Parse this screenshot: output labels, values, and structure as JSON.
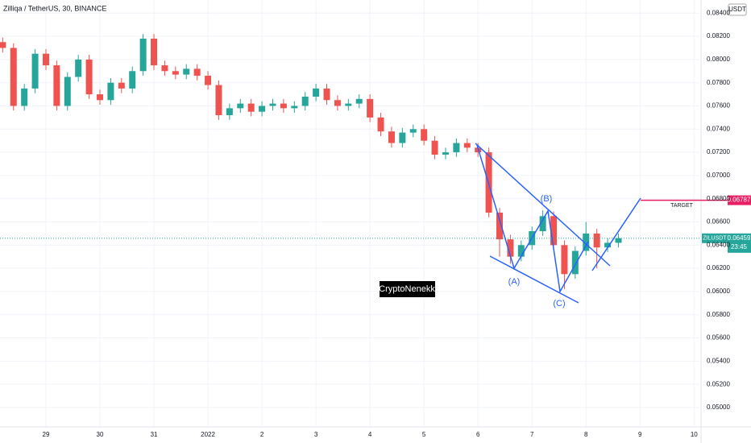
{
  "chart_data": {
    "type": "candlestick",
    "title": "Zilliqa / TetherUS, 30, BINANCE",
    "currency": "USDT",
    "symbol": "ZILUSDT",
    "countdown": "23:45",
    "watermark": "CryptoNenekk",
    "annotations": [
      "(A)",
      "(B)",
      "(C)",
      "TARGET"
    ],
    "last_price": 0.06459,
    "target_price": 0.06787,
    "up_color": "#26a69a",
    "down_color": "#ef5350",
    "target_color": "#e91e63",
    "x": [
      -0.8,
      -0.6,
      -0.4,
      -0.2,
      0,
      0.2,
      0.4,
      0.6,
      0.8,
      1,
      1.2,
      1.4,
      1.6,
      1.8,
      2,
      2.2,
      2.4,
      2.6,
      2.8,
      3,
      3.2,
      3.4,
      3.6,
      3.8,
      4,
      4.2,
      4.4,
      4.6,
      4.8,
      5,
      5.2,
      5.4,
      5.6,
      5.8,
      6,
      6.2,
      6.4,
      6.6,
      6.8,
      7,
      7.2,
      7.4,
      7.6,
      7.8,
      8,
      8.2,
      8.4,
      8.6,
      8.8,
      9,
      9.2,
      9.4,
      9.6,
      9.8,
      10,
      10.2,
      10.4,
      10.6
    ],
    "open": [
      0.0815,
      0.081,
      0.076,
      0.0775,
      0.0805,
      0.0795,
      0.076,
      0.0785,
      0.08,
      0.077,
      0.0765,
      0.078,
      0.0775,
      0.079,
      0.0818,
      0.0795,
      0.079,
      0.0787,
      0.0792,
      0.0786,
      0.0778,
      0.0752,
      0.0758,
      0.0762,
      0.0755,
      0.076,
      0.0762,
      0.0758,
      0.076,
      0.0768,
      0.0775,
      0.0765,
      0.076,
      0.0762,
      0.0766,
      0.075,
      0.0738,
      0.0728,
      0.0737,
      0.074,
      0.073,
      0.0718,
      0.072,
      0.0728,
      0.0724,
      0.072,
      0.0668,
      0.0645,
      0.063,
      0.064,
      0.0652,
      0.0665,
      0.064,
      0.0615,
      0.0635,
      0.065,
      0.0638,
      0.0642
    ],
    "high": [
      0.0819,
      0.0814,
      0.0779,
      0.0809,
      0.0809,
      0.0799,
      0.0789,
      0.0804,
      0.0804,
      0.0774,
      0.0784,
      0.0784,
      0.0794,
      0.0822,
      0.0822,
      0.0799,
      0.0794,
      0.0796,
      0.0796,
      0.079,
      0.0782,
      0.0762,
      0.0766,
      0.0766,
      0.0764,
      0.0766,
      0.0766,
      0.0764,
      0.0772,
      0.0779,
      0.0779,
      0.0769,
      0.0766,
      0.077,
      0.077,
      0.0754,
      0.0742,
      0.0741,
      0.0744,
      0.0744,
      0.0734,
      0.0724,
      0.0732,
      0.0732,
      0.0728,
      0.0724,
      0.0672,
      0.0649,
      0.0644,
      0.0656,
      0.067,
      0.0669,
      0.0644,
      0.0639,
      0.066,
      0.0654,
      0.0646,
      0.065
    ],
    "low": [
      0.0806,
      0.0756,
      0.0756,
      0.0771,
      0.0791,
      0.0756,
      0.0756,
      0.0781,
      0.0766,
      0.0761,
      0.0761,
      0.0771,
      0.0771,
      0.0786,
      0.0791,
      0.0786,
      0.0783,
      0.0783,
      0.0782,
      0.0774,
      0.0748,
      0.0748,
      0.0754,
      0.0751,
      0.0751,
      0.0756,
      0.0754,
      0.0754,
      0.0756,
      0.0764,
      0.0761,
      0.0756,
      0.0756,
      0.0758,
      0.0746,
      0.0734,
      0.0724,
      0.0724,
      0.0733,
      0.0726,
      0.0714,
      0.0714,
      0.0716,
      0.072,
      0.0716,
      0.0664,
      0.063,
      0.0624,
      0.0626,
      0.0636,
      0.0648,
      0.0636,
      0.0602,
      0.0611,
      0.0631,
      0.062,
      0.0634,
      0.0638
    ],
    "close": [
      0.081,
      0.076,
      0.0775,
      0.0805,
      0.0795,
      0.076,
      0.0785,
      0.08,
      0.077,
      0.0765,
      0.078,
      0.0775,
      0.079,
      0.0818,
      0.0795,
      0.079,
      0.0787,
      0.0792,
      0.0786,
      0.0778,
      0.0752,
      0.0758,
      0.0762,
      0.0755,
      0.076,
      0.0762,
      0.0758,
      0.076,
      0.0768,
      0.0775,
      0.0765,
      0.076,
      0.0762,
      0.0766,
      0.075,
      0.0738,
      0.0728,
      0.0737,
      0.074,
      0.073,
      0.0718,
      0.072,
      0.0728,
      0.0724,
      0.072,
      0.0668,
      0.0645,
      0.063,
      0.064,
      0.0652,
      0.0665,
      0.064,
      0.0615,
      0.0635,
      0.065,
      0.0638,
      0.0642,
      0.0646
    ],
    "xlim": [
      -0.85,
      12.1
    ],
    "xticks": [
      {
        "value": 0,
        "label": "29"
      },
      {
        "value": 1,
        "label": "30"
      },
      {
        "value": 2,
        "label": "31"
      },
      {
        "value": 3,
        "label": "2022"
      },
      {
        "value": 4,
        "label": "2"
      },
      {
        "value": 5,
        "label": "3"
      },
      {
        "value": 6,
        "label": "4"
      },
      {
        "value": 7,
        "label": "5"
      },
      {
        "value": 8,
        "label": "6"
      },
      {
        "value": 9,
        "label": "7"
      },
      {
        "value": 10,
        "label": "8"
      },
      {
        "value": 11,
        "label": "9"
      },
      {
        "value": 12,
        "label": "10"
      }
    ],
    "ylim": [
      0.04833,
      0.08513
    ],
    "yticks": [
      {
        "value": 0.05,
        "label": "0.05000"
      },
      {
        "value": 0.052,
        "label": "0.05200"
      },
      {
        "value": 0.054,
        "label": "0.05400"
      },
      {
        "value": 0.056,
        "label": "0.05600"
      },
      {
        "value": 0.058,
        "label": "0.05800"
      },
      {
        "value": 0.06,
        "label": "0.06000"
      },
      {
        "value": 0.062,
        "label": "0.06200"
      },
      {
        "value": 0.064,
        "label": "0.06400"
      },
      {
        "value": 0.066,
        "label": "0.06600"
      },
      {
        "value": 0.068,
        "label": "0.06800"
      },
      {
        "value": 0.07,
        "label": "0.07000"
      },
      {
        "value": 0.072,
        "label": "0.07200"
      },
      {
        "value": 0.074,
        "label": "0.07400"
      },
      {
        "value": 0.076,
        "label": "0.07600"
      },
      {
        "value": 0.078,
        "label": "0.07800"
      },
      {
        "value": 0.08,
        "label": "0.08000"
      },
      {
        "value": 0.082,
        "label": "0.08200"
      },
      {
        "value": 0.084,
        "label": "0.08400"
      }
    ],
    "grid": true
  }
}
